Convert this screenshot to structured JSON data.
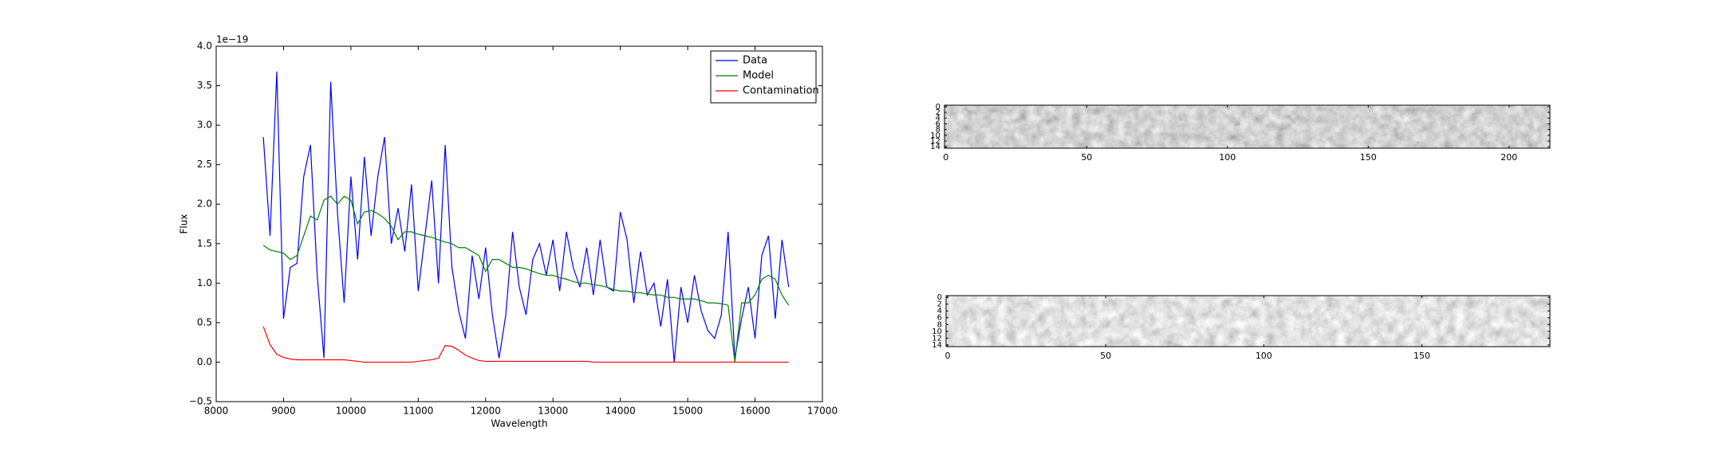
{
  "chart_data": [
    {
      "type": "line",
      "offset_text": "1e−19",
      "xlabel": "Wavelength",
      "ylabel": "Flux",
      "xlim": [
        8000,
        17000
      ],
      "xticks": [
        8000,
        9000,
        10000,
        11000,
        12000,
        13000,
        14000,
        15000,
        16000,
        17000
      ],
      "ylim": [
        -0.5,
        4.0
      ],
      "yticks": [
        {
          "value": -0.5,
          "label": "−0.5"
        },
        {
          "value": 0,
          "label": "0.0"
        },
        0.5,
        {
          "value": 1,
          "label": "1.0"
        },
        1.5,
        {
          "value": 2,
          "label": "2.0"
        },
        2.5,
        {
          "value": 3,
          "label": "3.0"
        },
        3.5,
        {
          "value": 4,
          "label": "4.0"
        }
      ],
      "legend": "upper right",
      "x": [
        8700,
        8800,
        8900,
        9000,
        9100,
        9200,
        9300,
        9400,
        9500,
        9600,
        9700,
        9800,
        9900,
        10000,
        10100,
        10200,
        10300,
        10400,
        10500,
        10600,
        10700,
        10800,
        10900,
        11000,
        11100,
        11200,
        11300,
        11400,
        11500,
        11600,
        11700,
        11800,
        11900,
        12000,
        12100,
        12200,
        12300,
        12400,
        12500,
        12600,
        12700,
        12800,
        12900,
        13000,
        13100,
        13200,
        13300,
        13400,
        13500,
        13600,
        13700,
        13800,
        13900,
        14000,
        14100,
        14200,
        14300,
        14400,
        14500,
        14600,
        14700,
        14800,
        14900,
        15000,
        15100,
        15200,
        15300,
        15400,
        15500,
        15600,
        15700,
        15800,
        15900,
        16000,
        16100,
        16200,
        16300,
        16400,
        16500
      ],
      "series": [
        {
          "name": "Data",
          "color": "#0000ff",
          "values": [
            2.85,
            1.6,
            3.68,
            0.55,
            1.2,
            1.25,
            2.35,
            2.75,
            1.1,
            0.05,
            3.55,
            1.9,
            0.75,
            2.35,
            1.3,
            2.6,
            1.6,
            2.35,
            2.85,
            1.5,
            1.95,
            1.4,
            2.25,
            0.9,
            1.6,
            2.3,
            1.0,
            2.75,
            1.2,
            0.65,
            0.3,
            1.35,
            0.8,
            1.45,
            0.6,
            0.05,
            0.6,
            1.65,
            0.95,
            0.6,
            1.3,
            1.5,
            1.1,
            1.55,
            0.9,
            1.65,
            1.2,
            0.95,
            1.45,
            0.85,
            1.55,
            0.95,
            0.9,
            1.9,
            1.55,
            0.75,
            1.4,
            0.85,
            1.0,
            0.45,
            1.05,
            0.0,
            0.95,
            0.5,
            1.1,
            0.65,
            0.4,
            0.3,
            0.6,
            1.65,
            0.05,
            0.55,
            0.95,
            0.3,
            1.35,
            1.6,
            0.55,
            1.55,
            0.95
          ]
        },
        {
          "name": "Model",
          "color": "#008000",
          "values": [
            1.48,
            1.42,
            1.4,
            1.38,
            1.3,
            1.35,
            1.6,
            1.85,
            1.8,
            2.05,
            2.1,
            2.0,
            2.1,
            2.05,
            1.75,
            1.9,
            1.92,
            1.88,
            1.82,
            1.72,
            1.55,
            1.65,
            1.65,
            1.62,
            1.6,
            1.58,
            1.55,
            1.52,
            1.5,
            1.45,
            1.45,
            1.4,
            1.35,
            1.15,
            1.3,
            1.3,
            1.25,
            1.2,
            1.2,
            1.18,
            1.15,
            1.12,
            1.1,
            1.1,
            1.07,
            1.05,
            1.02,
            1.0,
            1.0,
            0.98,
            0.97,
            0.95,
            0.92,
            0.9,
            0.9,
            0.88,
            0.88,
            0.86,
            0.85,
            0.85,
            0.82,
            0.82,
            0.8,
            0.8,
            0.8,
            0.78,
            0.75,
            0.75,
            0.74,
            0.72,
            0.0,
            0.75,
            0.75,
            0.85,
            1.05,
            1.1,
            1.05,
            0.85,
            0.72
          ]
        },
        {
          "name": "Contamination",
          "color": "#ff0000",
          "values": [
            0.45,
            0.22,
            0.1,
            0.06,
            0.04,
            0.03,
            0.03,
            0.03,
            0.03,
            0.03,
            0.03,
            0.03,
            0.03,
            0.02,
            0.01,
            0.0,
            0.0,
            0.0,
            0.0,
            0.0,
            0.0,
            0.0,
            0.0,
            0.01,
            0.02,
            0.03,
            0.05,
            0.21,
            0.2,
            0.15,
            0.09,
            0.05,
            0.02,
            0.01,
            0.01,
            0.01,
            0.01,
            0.01,
            0.01,
            0.01,
            0.01,
            0.01,
            0.01,
            0.01,
            0.01,
            0.01,
            0.01,
            0.01,
            0.01,
            0.0,
            0.0,
            0.0,
            0.0,
            0.0,
            0.0,
            0.0,
            0.0,
            0.0,
            0.0,
            0.0,
            0.0,
            0.0,
            0.0,
            0.0,
            0.0,
            0.0,
            0.0,
            0.0,
            0.0,
            0.0,
            0.0,
            0.0,
            0.0,
            0.0,
            0.0,
            0.0,
            0.0,
            0.0,
            0.0
          ]
        }
      ]
    },
    {
      "type": "image",
      "xlim": [
        -0.5,
        214.5
      ],
      "xticks": [
        0,
        50,
        100,
        150,
        200
      ],
      "ylim": [
        -0.5,
        14.5
      ],
      "yticks": [
        0,
        2,
        4,
        6,
        8,
        10,
        12,
        14
      ]
    },
    {
      "type": "image",
      "xlim": [
        -0.5,
        190.5
      ],
      "xticks": [
        0,
        50,
        100,
        150
      ],
      "ylim": [
        -0.5,
        14.5
      ],
      "yticks": [
        0,
        2,
        4,
        6,
        8,
        10,
        12,
        14
      ]
    }
  ]
}
